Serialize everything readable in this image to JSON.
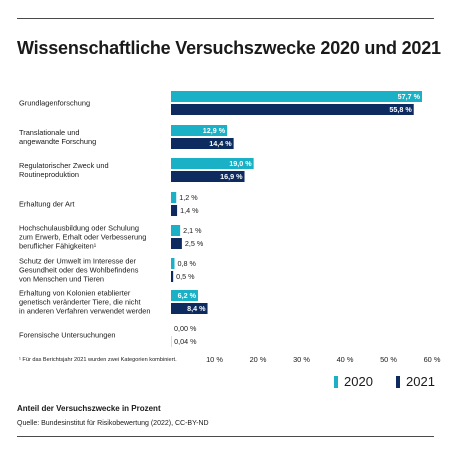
{
  "title": "Wissenschaftliche Versuchszwecke 2020 und 2021",
  "footnote": "¹ Für das Berichtsjahr 2021 wurden zwei Kategorien kombiniert.",
  "caption": "Anteil der Versuchszwecke in Prozent",
  "source": "Quelle: Bundesinstitut für Risikobewertung (2022), CC-BY-ND",
  "colors": {
    "2020": "#1ab0c6",
    "2021": "#0d2b5e"
  },
  "chart_data": {
    "type": "bar",
    "orientation": "horizontal",
    "categories": [
      "Grundlagenforschung",
      "Translationale und angewandte Forschung",
      "Regulatorischer Zweck und Routineproduktion",
      "Erhaltung der Art",
      "Hochschulausbildung oder Schulung zum Erwerb, Erhalt oder Verbesserung beruflicher Fähigkeiten¹",
      "Schutz der Umwelt im Interesse der Gesundheit oder des Wohlbefindens von Menschen und Tieren",
      "Erhaltung von Kolonien etablierter genetisch veränderter Tiere, die nicht in anderen Verfahren verwendet werden",
      "Forensische Untersuchungen"
    ],
    "category_lines": [
      [
        "Grundlagenforschung"
      ],
      [
        "Translationale und",
        "angewandte Forschung"
      ],
      [
        "Regulatorischer Zweck und",
        "Routineproduktion"
      ],
      [
        "Erhaltung der Art"
      ],
      [
        "Hochschulausbildung oder Schulung",
        "zum Erwerb, Erhalt oder Verbesserung",
        "beruflicher Fähigkeiten¹"
      ],
      [
        "Schutz der Umwelt im Interesse der",
        "Gesundheit oder des Wohlbefindens",
        "von Menschen und Tieren"
      ],
      [
        "Erhaltung von Kolonien etablierter",
        "genetisch veränderter Tiere, die nicht",
        "in anderen Verfahren verwendet werden"
      ],
      [
        "Forensische Untersuchungen"
      ]
    ],
    "series": [
      {
        "name": "2020",
        "values": [
          57.7,
          12.9,
          19.0,
          1.2,
          2.1,
          0.8,
          6.2,
          0.0
        ],
        "labels": [
          "57,7 %",
          "12,9 %",
          "19,0 %",
          "1,2 %",
          "2,1 %",
          "0,8 %",
          "6,2 %",
          "0,00 %"
        ]
      },
      {
        "name": "2021",
        "values": [
          55.8,
          14.4,
          16.9,
          1.4,
          2.5,
          0.5,
          8.4,
          0.04
        ],
        "labels": [
          "55,8 %",
          "14,4 %",
          "16,9 %",
          "1,4 %",
          "2,5 %",
          "0,5 %",
          "8,4 %",
          "0,04 %"
        ]
      }
    ],
    "xlim": [
      0,
      60
    ],
    "xticks": [
      10,
      20,
      30,
      40,
      50,
      60
    ],
    "xtick_labels": [
      "10 %",
      "20 %",
      "30 %",
      "40 %",
      "50 %",
      "60 %"
    ],
    "legend": "bottom-right"
  }
}
